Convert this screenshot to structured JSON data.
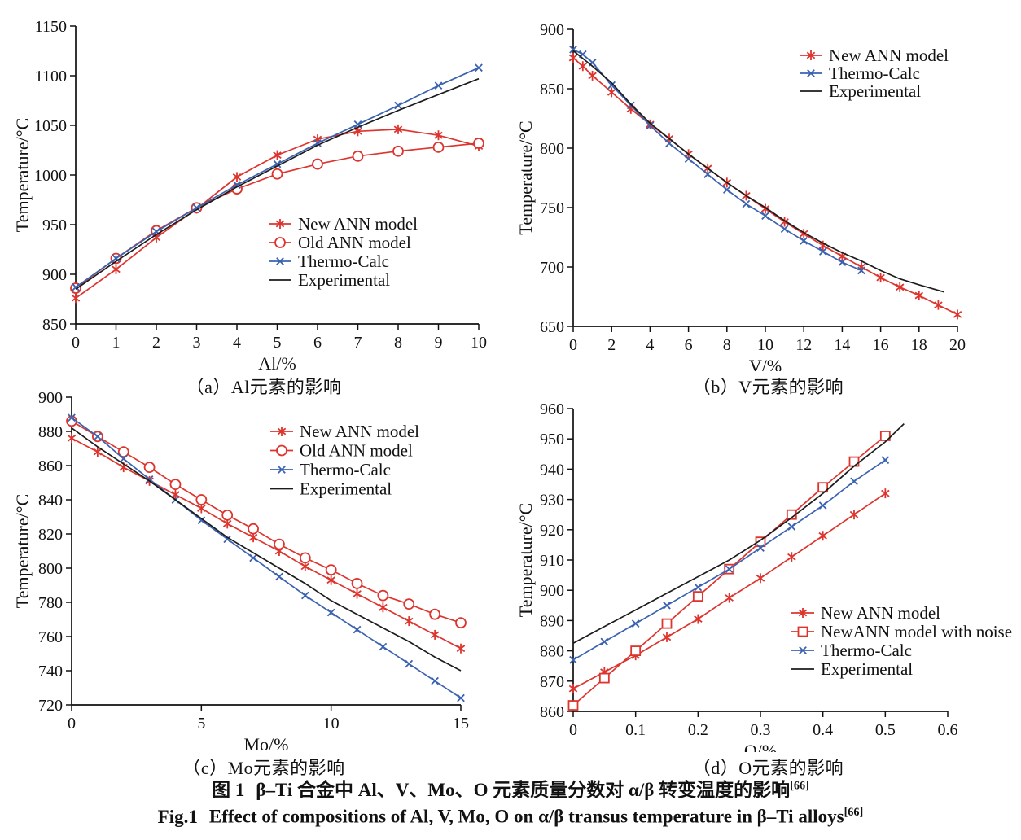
{
  "figure": {
    "caption_cn": {
      "prefix": "图 1",
      "text": "β–Ti 合金中 Al、V、Mo、O 元素质量分数对 α/β 转变温度的影响",
      "sup": "[66]"
    },
    "caption_en": {
      "prefix": "Fig.1",
      "text": "Effect of compositions of Al, V, Mo, O on α/β transus temperature in β–Ti alloys",
      "sup": "[66]"
    }
  },
  "colors": {
    "red": "#dd342e",
    "blue": "#3a62b0",
    "black": "#1c1c1c"
  },
  "chart_data": [
    {
      "id": "a",
      "type": "line",
      "caption": "（a）Al元素的影响",
      "xlabel": "Al/%",
      "ylabel": "Temperature/°C",
      "xlim": [
        0,
        10
      ],
      "ylim": [
        850,
        1150
      ],
      "xticks": [
        0,
        1,
        2,
        3,
        4,
        5,
        6,
        7,
        8,
        9,
        10
      ],
      "yticks": [
        850,
        900,
        950,
        1000,
        1050,
        1100,
        1150
      ],
      "legend_position": "right-middle",
      "series": [
        {
          "name": "New ANN model",
          "color": "red",
          "marker": "star",
          "x": [
            0,
            1,
            2,
            3,
            4,
            5,
            6,
            7,
            8,
            9,
            10
          ],
          "y": [
            876,
            905,
            937,
            966,
            998,
            1020,
            1036,
            1044,
            1046,
            1040,
            1029
          ]
        },
        {
          "name": "Old ANN model",
          "color": "red",
          "marker": "circle",
          "x": [
            0,
            1,
            2,
            3,
            4,
            5,
            6,
            7,
            8,
            9,
            10
          ],
          "y": [
            886,
            916,
            944,
            967,
            986,
            1001,
            1011,
            1019,
            1024,
            1028,
            1032
          ]
        },
        {
          "name": "Thermo-Calc",
          "color": "blue",
          "marker": "x",
          "x": [
            0,
            1,
            2,
            3,
            4,
            5,
            6,
            7,
            8,
            9,
            10
          ],
          "y": [
            887,
            916,
            943,
            967,
            990,
            1011,
            1032,
            1051,
            1070,
            1090,
            1108
          ]
        },
        {
          "name": "Experimental",
          "color": "black",
          "marker": "none",
          "x": [
            0,
            1,
            2,
            3,
            4,
            5,
            6,
            7,
            8,
            9,
            10
          ],
          "y": [
            885,
            913,
            940,
            965,
            988,
            1009,
            1030,
            1048,
            1065,
            1081,
            1097
          ]
        }
      ]
    },
    {
      "id": "b",
      "type": "line",
      "caption": "（b）V元素的影响",
      "xlabel": "V/%",
      "ylabel": "Temperature/°C",
      "xlim": [
        0,
        20
      ],
      "ylim": [
        650,
        900
      ],
      "xticks": [
        0,
        2,
        4,
        6,
        8,
        10,
        12,
        14,
        16,
        18,
        20
      ],
      "yticks": [
        650,
        700,
        750,
        800,
        850,
        900
      ],
      "legend_position": "top-right",
      "series": [
        {
          "name": "New ANN model",
          "color": "red",
          "marker": "star",
          "x": [
            0,
            0.5,
            1,
            2,
            3,
            4,
            5,
            6,
            7,
            8,
            9,
            10,
            11,
            12,
            13,
            14,
            15,
            16,
            17,
            18,
            19,
            20
          ],
          "y": [
            876,
            869,
            861,
            847,
            833,
            820,
            808,
            795,
            783,
            771,
            760,
            749,
            738,
            728,
            718,
            709,
            700,
            691,
            683,
            676,
            668,
            660
          ]
        },
        {
          "name": "Thermo-Calc",
          "color": "blue",
          "marker": "x",
          "x": [
            0,
            0.5,
            1,
            2,
            3,
            4,
            5,
            6,
            7,
            8,
            9,
            10,
            11,
            12,
            13,
            14,
            15
          ],
          "y": [
            883,
            879,
            872,
            853,
            836,
            819,
            804,
            791,
            778,
            765,
            753,
            743,
            732,
            722,
            713,
            704,
            697
          ]
        },
        {
          "name": "Experimental",
          "color": "black",
          "marker": "none",
          "x": [
            0,
            1,
            2,
            3,
            4,
            5,
            6,
            7,
            8,
            9,
            10,
            11,
            12,
            13,
            14,
            15,
            16,
            17,
            18,
            19.3
          ],
          "y": [
            882,
            869,
            855,
            837,
            821,
            808,
            795,
            783,
            771,
            760,
            750,
            739,
            729,
            720,
            712,
            705,
            697,
            690,
            685,
            679
          ]
        }
      ]
    },
    {
      "id": "c",
      "type": "line",
      "caption": "（c）Mo元素的影响",
      "xlabel": "Mo/%",
      "ylabel": "Temperature/°C",
      "xlim": [
        0,
        15
      ],
      "ylim": [
        720,
        900
      ],
      "xticks": [
        0,
        5,
        10,
        15
      ],
      "yticks": [
        720,
        740,
        760,
        780,
        800,
        820,
        840,
        860,
        880,
        900
      ],
      "legend_position": "top-right",
      "series": [
        {
          "name": "New ANN model",
          "color": "red",
          "marker": "star",
          "x": [
            0,
            1,
            2,
            3,
            4,
            5,
            6,
            7,
            8,
            9,
            10,
            11,
            12,
            13,
            14,
            15
          ],
          "y": [
            876,
            868,
            859,
            851,
            843,
            835,
            826,
            818,
            810,
            801,
            793,
            785,
            777,
            769,
            761,
            753
          ]
        },
        {
          "name": "Old ANN model",
          "color": "red",
          "marker": "circle",
          "x": [
            0,
            1,
            2,
            3,
            4,
            5,
            6,
            7,
            8,
            9,
            10,
            11,
            12,
            13,
            14,
            15
          ],
          "y": [
            886,
            877,
            868,
            859,
            849,
            840,
            831,
            823,
            814,
            806,
            799,
            791,
            784,
            779,
            773,
            768
          ]
        },
        {
          "name": "Thermo-Calc",
          "color": "blue",
          "marker": "x",
          "x": [
            0,
            1,
            2,
            3,
            4,
            5,
            6,
            7,
            8,
            9,
            10,
            11,
            12,
            13,
            14,
            15
          ],
          "y": [
            888,
            877,
            864,
            852,
            840,
            828,
            817,
            806,
            795,
            784,
            774,
            764,
            754,
            744,
            734,
            724
          ]
        },
        {
          "name": "Experimental",
          "color": "black",
          "marker": "none",
          "x": [
            0,
            1,
            2,
            3,
            4,
            5,
            6,
            7,
            8,
            9,
            10,
            11,
            12,
            13,
            14,
            15
          ],
          "y": [
            882,
            871,
            861,
            851,
            840,
            829,
            818,
            809,
            800,
            791,
            781,
            773,
            765,
            757,
            748,
            740
          ]
        }
      ]
    },
    {
      "id": "d",
      "type": "line",
      "caption": "（d）O元素的影响",
      "xlabel": "O/%",
      "ylabel": "Temperature/°C",
      "xlim": [
        0,
        0.6
      ],
      "ylim": [
        860,
        960
      ],
      "xticks": [
        0,
        0.1,
        0.2,
        0.3,
        0.4,
        0.5,
        0.6
      ],
      "yticks": [
        860,
        870,
        880,
        890,
        900,
        910,
        920,
        930,
        940,
        950,
        960
      ],
      "legend_position": "right-lower",
      "series": [
        {
          "name": "New ANN model",
          "color": "red",
          "marker": "star",
          "x": [
            0,
            0.05,
            0.1,
            0.15,
            0.2,
            0.25,
            0.3,
            0.35,
            0.4,
            0.45,
            0.5
          ],
          "y": [
            867.5,
            873,
            878.5,
            884.5,
            890.5,
            897.5,
            904,
            911,
            918,
            925,
            932
          ]
        },
        {
          "name": "NewANN model with noise",
          "color": "red",
          "marker": "square",
          "x": [
            0,
            0.05,
            0.1,
            0.15,
            0.2,
            0.25,
            0.3,
            0.35,
            0.4,
            0.45,
            0.5
          ],
          "y": [
            862,
            871,
            880,
            889,
            898,
            907,
            916,
            925,
            934,
            942.5,
            951
          ]
        },
        {
          "name": "Thermo-Calc",
          "color": "blue",
          "marker": "x",
          "x": [
            0,
            0.05,
            0.1,
            0.15,
            0.2,
            0.25,
            0.3,
            0.35,
            0.4,
            0.45,
            0.5
          ],
          "y": [
            877,
            883,
            889,
            895,
            901,
            907,
            914,
            921,
            928,
            936,
            943
          ]
        },
        {
          "name": "Experimental",
          "color": "black",
          "marker": "none",
          "x": [
            0,
            0.05,
            0.1,
            0.15,
            0.2,
            0.25,
            0.3,
            0.35,
            0.4,
            0.45,
            0.5,
            0.53
          ],
          "y": [
            882.5,
            888,
            893.5,
            899,
            904.5,
            910,
            916.5,
            924,
            932,
            941,
            949,
            955
          ]
        }
      ]
    }
  ]
}
